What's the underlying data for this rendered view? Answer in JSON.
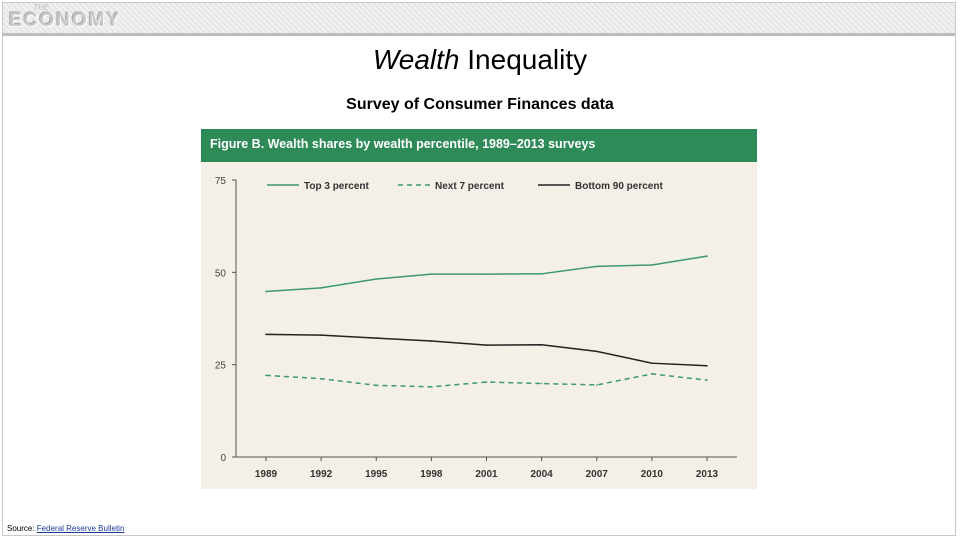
{
  "header": {
    "logo_small": "THE",
    "logo_text": "ECONOMY"
  },
  "slide": {
    "title_emphasis": "Wealth",
    "title_rest": " Inequality",
    "subtitle": "Survey of Consumer Finances data"
  },
  "source": {
    "label": "Source: ",
    "link_text": "Federal Reserve Bulletin"
  },
  "colors": {
    "figure_header": "#2e8b57",
    "top3": "#3a9a6a",
    "next7": "#3a9a6a",
    "bottom90": "#222222",
    "figure_bg": "#f4efe7"
  },
  "chart_data": {
    "type": "line",
    "title": "Figure B. Wealth shares by wealth percentile, 1989–2013 surveys",
    "categories": [
      "1989",
      "1992",
      "1995",
      "1998",
      "2001",
      "2004",
      "2007",
      "2010",
      "2013"
    ],
    "ylim": [
      0,
      75
    ],
    "yticks": [
      "0",
      "25",
      "50",
      "75"
    ],
    "grid": false,
    "legend_position": "top",
    "series": [
      {
        "name": "Top 3 percent",
        "style": "solid",
        "values": [
          44.8,
          45.8,
          48.2,
          49.5,
          49.5,
          49.6,
          51.6,
          52.0,
          54.4
        ]
      },
      {
        "name": "Next 7 percent",
        "style": "dashed",
        "values": [
          22.1,
          21.2,
          19.4,
          19.0,
          20.3,
          19.9,
          19.5,
          22.5,
          20.8
        ]
      },
      {
        "name": "Bottom 90 percent",
        "style": "solid",
        "values": [
          33.2,
          33.0,
          32.2,
          31.4,
          30.3,
          30.4,
          28.6,
          25.4,
          24.7
        ]
      }
    ]
  }
}
